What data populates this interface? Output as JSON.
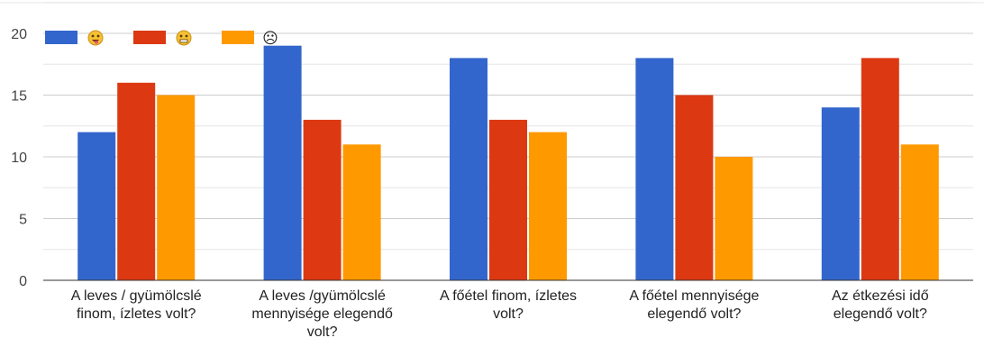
{
  "chart_data": {
    "type": "bar",
    "categories": [
      [
        "A leves / gyümölcslé",
        "finom, ízletes volt?"
      ],
      [
        "A leves /gyümölcslé",
        "mennyisége elegendő",
        "volt?"
      ],
      [
        "A főétel finom, ízletes",
        "volt?"
      ],
      [
        "A főétel mennyisége",
        "elegendő volt?"
      ],
      [
        "Az étkezési idő",
        "elegendő volt?"
      ]
    ],
    "series": [
      {
        "color": "#3366cc",
        "icon": "grinning-face-icon",
        "values": [
          12,
          19,
          18,
          18,
          14
        ]
      },
      {
        "color": "#dc3912",
        "icon": "grimacing-face-icon",
        "values": [
          16,
          13,
          13,
          15,
          18
        ]
      },
      {
        "color": "#ff9900",
        "icon": "frowning-face-icon",
        "values": [
          15,
          11,
          12,
          10,
          11
        ]
      }
    ],
    "ylim": [
      0,
      20
    ],
    "yticks": [
      0,
      5,
      10,
      15,
      20
    ],
    "grid": true,
    "legend_position": "top-left",
    "legend_icons": [
      "😝",
      "😬",
      "☹"
    ]
  }
}
